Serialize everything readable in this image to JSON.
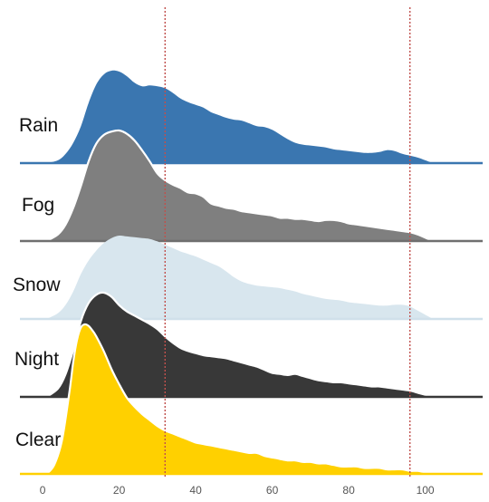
{
  "chart_data": {
    "type": "ridgeline",
    "title": "",
    "xlabel": "",
    "ylabel": "",
    "xlim": [
      -5,
      115
    ],
    "x_ticks": [
      0,
      20,
      40,
      60,
      80,
      100
    ],
    "grid": false,
    "legend": "none",
    "reference_lines": [
      {
        "x": 32,
        "style": "dotted",
        "color": "#c0504d"
      },
      {
        "x": 96,
        "style": "dotted",
        "color": "#c0504d"
      }
    ],
    "series": [
      {
        "name": "Rain",
        "color": "#3a76b0",
        "outline": "none",
        "baseline_color": "#3a76b0",
        "x": [
          1,
          4,
          6,
          8,
          10,
          12,
          14,
          16,
          18,
          20,
          22,
          24,
          26,
          28,
          30,
          32,
          34,
          36,
          38,
          40,
          42,
          44,
          46,
          48,
          50,
          52,
          54,
          56,
          58,
          60,
          62,
          64,
          66,
          68,
          70,
          72,
          74,
          76,
          78,
          80,
          82,
          84,
          86,
          88,
          90,
          92,
          94,
          96,
          98,
          100,
          102
        ],
        "y": [
          0,
          3,
          10,
          22,
          40,
          65,
          85,
          96,
          100,
          99,
          94,
          87,
          83,
          84,
          83,
          81,
          76,
          70,
          66,
          63,
          60,
          55,
          52,
          49,
          47,
          46,
          43,
          40,
          39,
          36,
          31,
          26,
          22,
          20,
          19,
          18,
          17,
          15,
          14,
          13,
          12,
          11,
          11,
          12,
          14,
          13,
          10,
          8,
          6,
          3,
          0
        ]
      },
      {
        "name": "Fog",
        "color": "#7f7f7f",
        "outline": "#ffffff",
        "baseline_color": "#6f6f6f",
        "x": [
          1,
          4,
          6,
          8,
          10,
          12,
          14,
          16,
          18,
          20,
          22,
          24,
          26,
          28,
          30,
          32,
          34,
          36,
          38,
          40,
          42,
          44,
          46,
          48,
          50,
          52,
          54,
          56,
          58,
          60,
          62,
          64,
          66,
          68,
          70,
          72,
          74,
          76,
          78,
          80,
          82,
          84,
          86,
          88,
          90,
          92,
          94,
          96,
          98,
          100,
          102
        ],
        "y": [
          0,
          6,
          15,
          30,
          50,
          72,
          88,
          96,
          99,
          100,
          97,
          91,
          82,
          72,
          61,
          55,
          51,
          48,
          44,
          43,
          40,
          34,
          32,
          30,
          29,
          27,
          26,
          25,
          24,
          23,
          21,
          21,
          20,
          20,
          19,
          18,
          19,
          19,
          18,
          16,
          15,
          14,
          13,
          12,
          11,
          10,
          9,
          8,
          6,
          3,
          0
        ]
      },
      {
        "name": "Snow",
        "color": "#d8e6ee",
        "outline": "none",
        "baseline_color": "#d0e0ea",
        "x": [
          1,
          4,
          6,
          8,
          10,
          12,
          14,
          16,
          18,
          20,
          22,
          24,
          26,
          28,
          30,
          32,
          34,
          36,
          38,
          40,
          42,
          44,
          46,
          48,
          50,
          52,
          54,
          56,
          58,
          60,
          62,
          64,
          66,
          68,
          70,
          72,
          74,
          76,
          78,
          80,
          82,
          84,
          86,
          88,
          90,
          92,
          94,
          96,
          98,
          100,
          102
        ],
        "y": [
          0,
          7,
          17,
          33,
          54,
          70,
          82,
          91,
          97,
          100,
          99,
          98,
          97,
          96,
          93,
          89,
          85,
          81,
          78,
          75,
          71,
          67,
          63,
          57,
          50,
          45,
          42,
          40,
          39,
          38,
          37,
          35,
          33,
          30,
          28,
          26,
          24,
          23,
          22,
          20,
          19,
          18,
          17,
          16,
          16,
          17,
          17,
          15,
          10,
          5,
          0
        ]
      },
      {
        "name": "Night",
        "color": "#383838",
        "outline": "#ffffff",
        "baseline_color": "#383838",
        "x": [
          1,
          4,
          6,
          8,
          10,
          12,
          14,
          16,
          18,
          20,
          22,
          24,
          26,
          28,
          30,
          32,
          34,
          36,
          38,
          40,
          42,
          44,
          46,
          48,
          50,
          52,
          54,
          56,
          58,
          60,
          62,
          64,
          66,
          68,
          70,
          72,
          74,
          76,
          78,
          80,
          82,
          84,
          86,
          88,
          90,
          92,
          94,
          96,
          98,
          100,
          102
        ],
        "y": [
          0,
          8,
          22,
          45,
          73,
          90,
          98,
          100,
          96,
          88,
          82,
          78,
          74,
          70,
          65,
          58,
          52,
          47,
          44,
          42,
          40,
          39,
          38,
          37,
          35,
          33,
          31,
          29,
          26,
          23,
          22,
          21,
          22,
          20,
          18,
          16,
          15,
          14,
          14,
          13,
          12,
          11,
          10,
          10,
          9,
          8,
          7,
          6,
          4,
          2,
          0
        ]
      },
      {
        "name": "Clear",
        "color": "#ffd000",
        "outline": "#ffffff",
        "baseline_color": "#ffd000",
        "x": [
          1,
          3,
          5,
          7,
          8,
          9,
          10,
          11,
          12,
          13,
          14,
          16,
          18,
          20,
          22,
          24,
          26,
          28,
          30,
          32,
          34,
          36,
          38,
          40,
          42,
          44,
          46,
          48,
          50,
          52,
          54,
          56,
          58,
          60,
          62,
          64,
          66,
          68,
          70,
          72,
          74,
          76,
          78,
          80,
          82,
          84,
          86,
          88,
          90,
          92,
          94,
          96,
          98,
          100,
          102
        ],
        "y": [
          0,
          6,
          22,
          55,
          75,
          90,
          98,
          100,
          99,
          96,
          92,
          82,
          70,
          60,
          51,
          45,
          40,
          36,
          32,
          29,
          27,
          25,
          23,
          21,
          20,
          19,
          18,
          17,
          16,
          15,
          14,
          14,
          12,
          11,
          10,
          9,
          9,
          8,
          8,
          7,
          7,
          6,
          5,
          5,
          5,
          4,
          4,
          4,
          3,
          3,
          3,
          2,
          2,
          1,
          0
        ]
      }
    ]
  }
}
